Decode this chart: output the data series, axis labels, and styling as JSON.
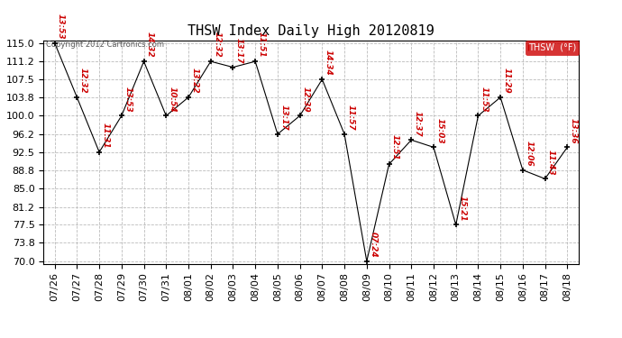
{
  "title": "THSW Index Daily High 20120819",
  "copyright": "Copyright 2012 Cartronics.com",
  "legend_label": "THSW  (°F)",
  "x_labels": [
    "07/26",
    "07/27",
    "07/28",
    "07/29",
    "07/30",
    "07/31",
    "08/01",
    "08/02",
    "08/03",
    "08/04",
    "08/05",
    "08/06",
    "08/07",
    "08/08",
    "08/09",
    "08/10",
    "08/11",
    "08/12",
    "08/13",
    "08/14",
    "08/15",
    "08/16",
    "08/17",
    "08/18"
  ],
  "y_values": [
    115.0,
    103.8,
    92.5,
    100.0,
    111.2,
    100.0,
    103.8,
    111.2,
    110.0,
    111.2,
    96.2,
    100.0,
    107.5,
    96.2,
    70.0,
    90.0,
    95.0,
    93.5,
    77.5,
    100.0,
    103.8,
    88.8,
    87.0,
    93.5
  ],
  "time_labels": [
    "13:53",
    "12:32",
    "11:31",
    "13:53",
    "14:32",
    "10:54",
    "13:22",
    "12:32",
    "13:17",
    "11:51",
    "13:17",
    "12:39",
    "14:34",
    "11:57",
    "07:24",
    "12:51",
    "12:37",
    "15:03",
    "15:21",
    "11:53",
    "11:29",
    "12:06",
    "11:43",
    "13:36"
  ],
  "y_min": 70.0,
  "y_max": 115.0,
  "y_ticks": [
    70.0,
    73.8,
    77.5,
    81.2,
    85.0,
    88.8,
    92.5,
    96.2,
    100.0,
    103.8,
    107.5,
    111.2,
    115.0
  ],
  "line_color": "#cc0000",
  "marker_color": "#000000",
  "background_color": "#ffffff",
  "grid_color": "#bbbbbb",
  "title_color": "#000000",
  "label_color": "#cc0000",
  "title_fontsize": 11,
  "tick_fontsize": 8,
  "label_fontsize": 6.5,
  "figwidth": 6.9,
  "figheight": 3.75,
  "dpi": 100
}
